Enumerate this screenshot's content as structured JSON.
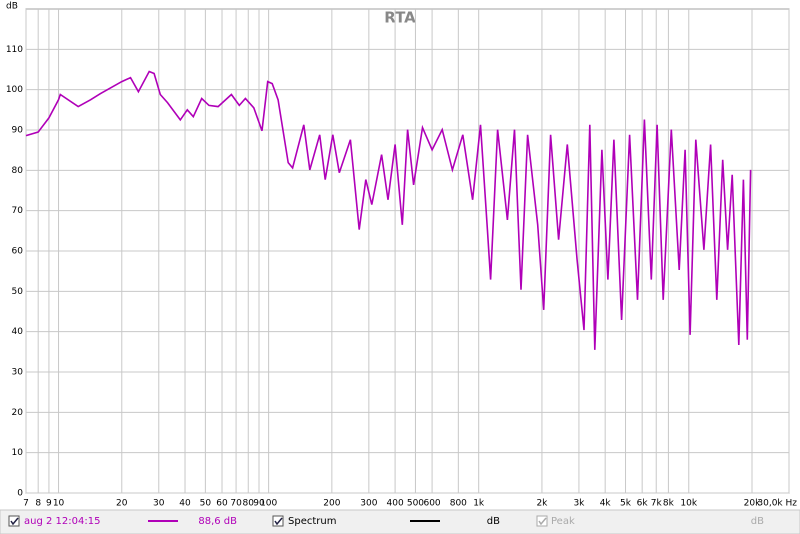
{
  "chart_data": {
    "type": "line",
    "title": "RTA",
    "y_label": "dB",
    "log_x": true,
    "grid": true,
    "xlim": [
      7,
      30000
    ],
    "ylim": [
      0,
      120
    ],
    "xticks": [
      7,
      8,
      9,
      10,
      20,
      30,
      40,
      50,
      60,
      70,
      80,
      90,
      100,
      200,
      300,
      400,
      500,
      600,
      800,
      {
        "value": 1000,
        "label": "1k"
      },
      {
        "value": 2000,
        "label": "2k"
      },
      {
        "value": 3000,
        "label": "3k"
      },
      {
        "value": 4000,
        "label": "4k"
      },
      {
        "value": 5000,
        "label": "5k"
      },
      {
        "value": 6000,
        "label": "6k"
      },
      {
        "value": 7000,
        "label": "7k"
      },
      {
        "value": 8000,
        "label": "8k"
      },
      {
        "value": 10000,
        "label": "10k"
      },
      {
        "value": 20000,
        "label": "20k"
      },
      {
        "value": 30000,
        "label": "30,0k Hz"
      }
    ],
    "yticks": [
      0,
      10,
      20,
      30,
      40,
      50,
      60,
      70,
      80,
      90,
      100,
      110
    ],
    "series": [
      {
        "name": "aug 2 12:04:15",
        "color": "#b000b8",
        "x": [
          7,
          8,
          9,
          10,
          10.2,
          12.4,
          14.2,
          15.8,
          20,
          22,
          24,
          27,
          28.5,
          30.5,
          33,
          38,
          41,
          43.8,
          48,
          52,
          57.5,
          66.5,
          72.5,
          77.5,
          85,
          93,
          99,
          104,
          111,
          124,
          130,
          147,
          157,
          175,
          186,
          202,
          217,
          245,
          270,
          290,
          310,
          345,
          370,
          400,
          433,
          459,
          490,
          540,
          600,
          670,
          750,
          840,
          935,
          1020,
          1100,
          1140,
          1230,
          1370,
          1480,
          1590,
          1710,
          1910,
          2040,
          2200,
          2400,
          2640,
          2940,
          3170,
          3380,
          3570,
          3860,
          4120,
          4400,
          4790,
          5230,
          5700,
          6150,
          6630,
          7070,
          7560,
          8260,
          9000,
          9610,
          10150,
          10800,
          11800,
          12700,
          13600,
          14500,
          15300,
          16100,
          17300,
          18200,
          19000,
          19700
        ],
        "values": [
          88.6,
          89.5,
          93,
          97.5,
          98.8,
          95.8,
          97.5,
          99,
          102,
          103,
          99.5,
          104.5,
          104,
          98.8,
          96.8,
          92.5,
          95,
          93.3,
          97.8,
          96.1,
          95.8,
          98.8,
          96.1,
          97.8,
          95.5,
          89.8,
          102,
          101.5,
          97.5,
          81.9,
          80.6,
          91.3,
          80.1,
          88.8,
          77.7,
          88.8,
          79.4,
          87.6,
          65.3,
          77.7,
          71.5,
          83.9,
          72.7,
          86.4,
          66.5,
          90.1,
          76.4,
          90.6,
          85.1,
          90.1,
          80.1,
          88.8,
          72.7,
          91.3,
          65.3,
          52.9,
          90.1,
          67.7,
          90.1,
          50.4,
          88.8,
          66.5,
          45.4,
          88.8,
          62.8,
          86.4,
          57.8,
          40.4,
          91.3,
          35.5,
          85.1,
          52.9,
          87.6,
          42.9,
          88.8,
          47.9,
          92.6,
          52.9,
          91.3,
          47.9,
          90.1,
          55.3,
          85.1,
          39.2,
          87.6,
          60.3,
          86.4,
          47.9,
          82.6,
          60.3,
          78.9,
          36.7,
          77.7,
          38,
          80.1
        ]
      }
    ],
    "legend_bar": {
      "cursor_value": "88,6 dB",
      "spectrum": "Spectrum",
      "spectrum_unit": "dB",
      "peak": "Peak",
      "peak_unit": "dB"
    }
  }
}
